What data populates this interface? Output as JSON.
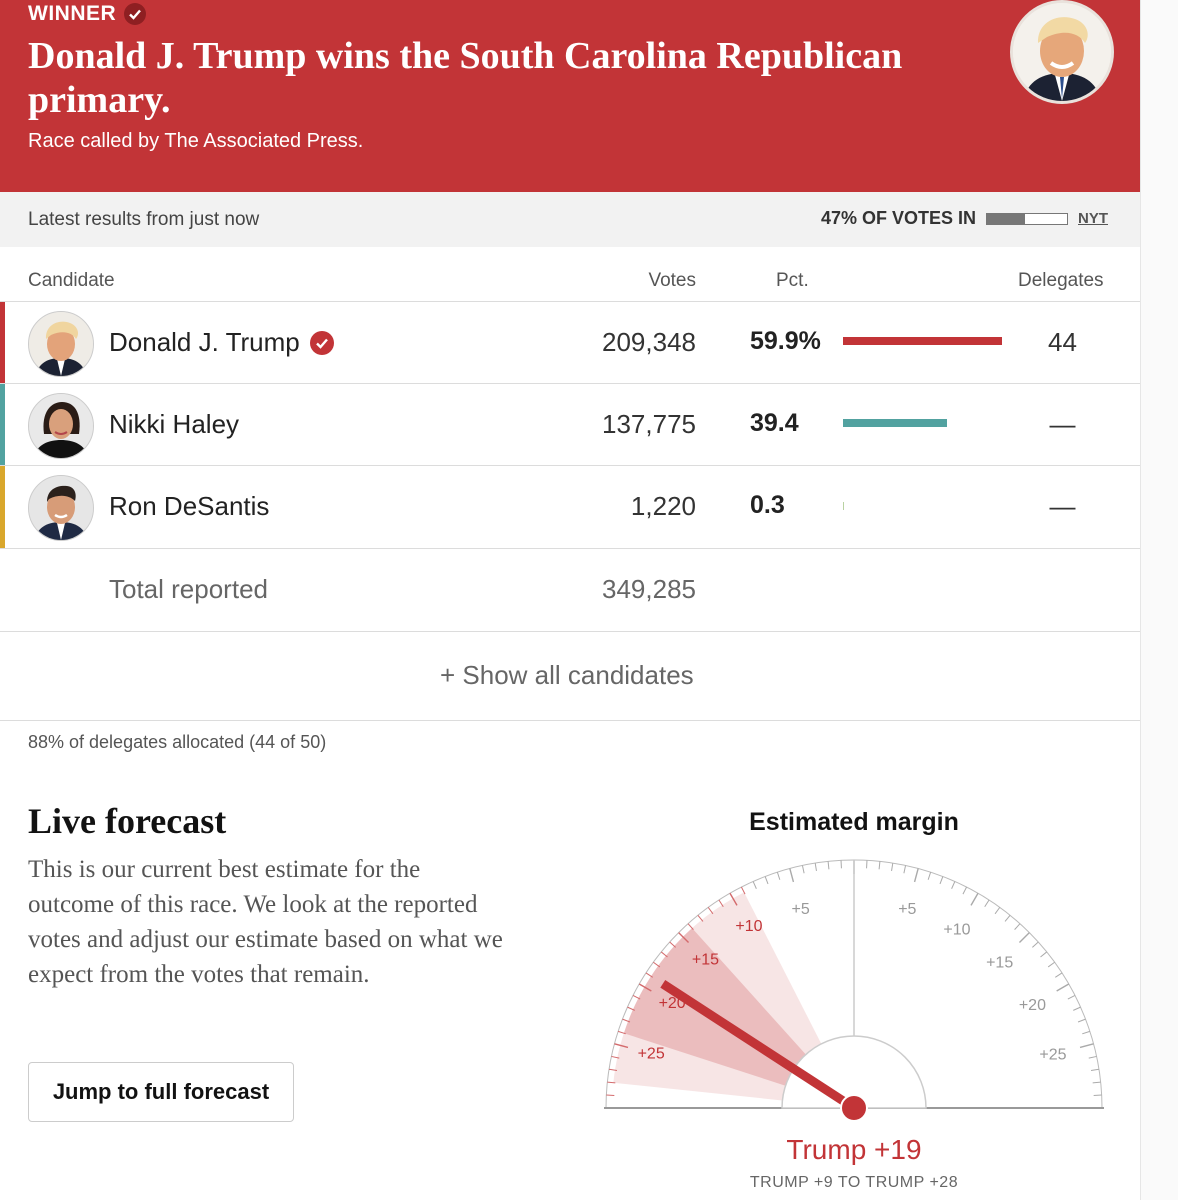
{
  "banner": {
    "winner_label": "WINNER",
    "headline": "Donald J. Trump wins the South Carolina Republican primary.",
    "called_by": "Race called by The Associated Press."
  },
  "status": {
    "latest": "Latest results from just now",
    "votes_in": "47% OF VOTES IN",
    "votes_in_fraction": 0.47,
    "source": "NYT"
  },
  "table": {
    "headers": {
      "candidate": "Candidate",
      "votes": "Votes",
      "pct": "Pct.",
      "delegates": "Delegates"
    },
    "rows": [
      {
        "name": "Donald J. Trump",
        "votes": "209,348",
        "pct": "59.9%",
        "pct_value": 59.9,
        "delegates": "44",
        "color": "#c23437",
        "winner": true
      },
      {
        "name": "Nikki Haley",
        "votes": "137,775",
        "pct": "39.4",
        "pct_value": 39.4,
        "delegates": "—",
        "color": "#52a2a0",
        "winner": false
      },
      {
        "name": "Ron DeSantis",
        "votes": "1,220",
        "pct": "0.3",
        "pct_value": 0.3,
        "delegates": "—",
        "color": "#d9a72c",
        "winner": false
      }
    ],
    "total_label": "Total reported",
    "total_votes": "349,285",
    "show_all": "+ Show all candidates",
    "delegates_allocated": "88% of delegates allocated (44 of 50)"
  },
  "forecast": {
    "title": "Live forecast",
    "description": "This is our current best estimate for the outcome of this race. We look at the reported votes and adjust our estimate based on what we expect from the votes that remain.",
    "button": "Jump to full forecast",
    "gauge_title": "Estimated margin",
    "result": "Trump +19",
    "range": "TRUMP +9 TO TRUMP +28",
    "estimate": 19,
    "range_low": 9,
    "range_high": 28,
    "inner_low": 14,
    "inner_high": 24,
    "left_labels": [
      "+10",
      "+15",
      "+20",
      "+25"
    ],
    "right_labels": [
      "+5",
      "+5",
      "+10",
      "+15",
      "+20",
      "+25"
    ],
    "accent": "#c23437"
  }
}
